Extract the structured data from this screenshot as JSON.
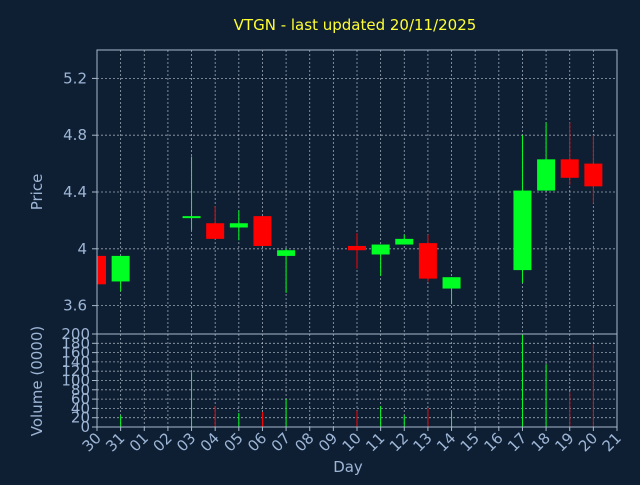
{
  "colors": {
    "background": "#0f1f33",
    "title": "#ffff33",
    "axis_text": "#9db6d6",
    "frame": "#a9b9cc",
    "grid": "#c8d2de",
    "up": "#00ff22",
    "down": "#ff0000"
  },
  "chart_data": {
    "type": "candlestick",
    "title": "VTGN - last updated 20/11/2025",
    "xlabel": "Day",
    "price_ylabel": "Price",
    "volume_ylabel": "Volume (0000)",
    "price_ylim": [
      3.4,
      5.4
    ],
    "price_ticks": [
      3.6,
      4.0,
      4.4,
      4.8,
      5.2
    ],
    "price_tick_labels": [
      "3.6",
      "4",
      "4.4",
      "4.8",
      "5.2"
    ],
    "volume_ylim": [
      0,
      200
    ],
    "volume_ticks": [
      0,
      20,
      40,
      60,
      80,
      100,
      120,
      140,
      160,
      180,
      200
    ],
    "volume_tick_labels": [
      "0",
      "20",
      "40",
      "60",
      "80",
      "100",
      "120",
      "140",
      "160",
      "180",
      "200"
    ],
    "x_tick_labels": [
      "30",
      "31",
      "01",
      "02",
      "03",
      "04",
      "05",
      "06",
      "07",
      "08",
      "09",
      "10",
      "11",
      "12",
      "13",
      "14",
      "15",
      "16",
      "17",
      "18",
      "19",
      "20",
      "21"
    ],
    "grid": true,
    "candles": [
      {
        "day": "30",
        "open": 3.95,
        "close": 3.75,
        "high": 3.95,
        "low": 3.75,
        "volume": 0
      },
      {
        "day": "31",
        "open": 3.77,
        "close": 3.95,
        "high": 3.95,
        "low": 3.7,
        "volume": 25
      },
      {
        "day": "03",
        "open": 4.22,
        "close": 4.23,
        "high": 4.65,
        "low": 4.13,
        "volume": 118
      },
      {
        "day": "04",
        "open": 4.18,
        "close": 4.07,
        "high": 4.3,
        "low": 4.07,
        "volume": 45
      },
      {
        "day": "05",
        "open": 4.15,
        "close": 4.18,
        "high": 4.27,
        "low": 4.06,
        "volume": 30
      },
      {
        "day": "06",
        "open": 4.23,
        "close": 4.02,
        "high": 4.23,
        "low": 4.02,
        "volume": 32
      },
      {
        "day": "07",
        "open": 3.95,
        "close": 3.99,
        "high": 4.0,
        "low": 3.69,
        "volume": 60
      },
      {
        "day": "10",
        "open": 4.02,
        "close": 3.99,
        "high": 4.11,
        "low": 3.86,
        "volume": 35
      },
      {
        "day": "11",
        "open": 3.96,
        "close": 4.03,
        "high": 4.03,
        "low": 3.81,
        "volume": 45
      },
      {
        "day": "12",
        "open": 4.03,
        "close": 4.07,
        "high": 4.1,
        "low": 4.03,
        "volume": 25
      },
      {
        "day": "13",
        "open": 4.04,
        "close": 3.79,
        "high": 4.1,
        "low": 3.77,
        "volume": 40
      },
      {
        "day": "14",
        "open": 3.72,
        "close": 3.8,
        "high": 3.8,
        "low": 3.61,
        "volume": 33
      },
      {
        "day": "17",
        "open": 3.85,
        "close": 4.41,
        "high": 4.8,
        "low": 3.76,
        "volume": 198
      },
      {
        "day": "18",
        "open": 4.41,
        "close": 4.63,
        "high": 4.89,
        "low": 4.41,
        "volume": 135
      },
      {
        "day": "19",
        "open": 4.63,
        "close": 4.5,
        "high": 4.89,
        "low": 4.45,
        "volume": 75
      },
      {
        "day": "20",
        "open": 4.6,
        "close": 4.44,
        "high": 4.8,
        "low": 4.32,
        "volume": 178
      }
    ]
  }
}
